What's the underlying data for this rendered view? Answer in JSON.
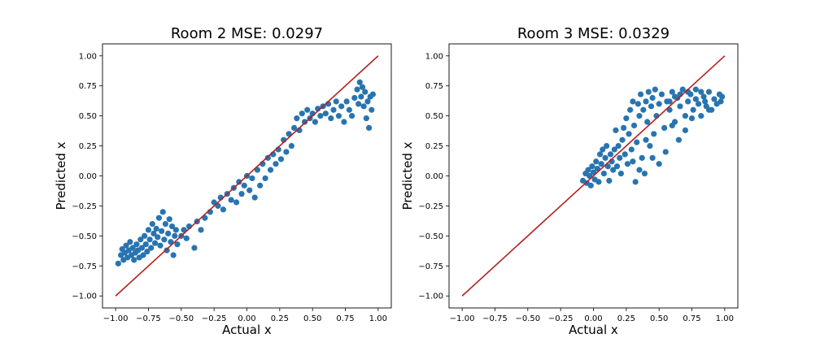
{
  "chart_data": [
    {
      "type": "scatter",
      "title": "Room 2 MSE: 0.0297",
      "xlabel": "Actual x",
      "ylabel": "Predicted x",
      "xlim": [
        -1.1,
        1.1
      ],
      "ylim": [
        -1.1,
        1.1
      ],
      "xticks": [
        -1.0,
        -0.75,
        -0.5,
        -0.25,
        0.0,
        0.25,
        0.5,
        0.75,
        1.0
      ],
      "yticks": [
        -1.0,
        -0.75,
        -0.5,
        -0.25,
        0.0,
        0.25,
        0.5,
        0.75,
        1.0
      ],
      "xtick_labels": [
        "−1.00",
        "−0.75",
        "−0.50",
        "−0.25",
        "0.00",
        "0.25",
        "0.50",
        "0.75",
        "1.00"
      ],
      "ytick_labels": [
        "−1.00",
        "−0.75",
        "−0.50",
        "−0.25",
        "0.00",
        "0.25",
        "0.50",
        "0.75",
        "1.00"
      ],
      "grid": false,
      "reference_line": {
        "x": [
          -1.0,
          1.0
        ],
        "y": [
          -1.0,
          1.0
        ],
        "color": "#b22222"
      },
      "marker_color": "#2874b0",
      "points": [
        [
          -0.98,
          -0.73
        ],
        [
          -0.96,
          -0.66
        ],
        [
          -0.95,
          -0.61
        ],
        [
          -0.94,
          -0.7
        ],
        [
          -0.93,
          -0.64
        ],
        [
          -0.92,
          -0.58
        ],
        [
          -0.91,
          -0.68
        ],
        [
          -0.9,
          -0.62
        ],
        [
          -0.89,
          -0.55
        ],
        [
          -0.88,
          -0.66
        ],
        [
          -0.87,
          -0.6
        ],
        [
          -0.86,
          -0.7
        ],
        [
          -0.85,
          -0.64
        ],
        [
          -0.84,
          -0.57
        ],
        [
          -0.83,
          -0.62
        ],
        [
          -0.82,
          -0.68
        ],
        [
          -0.81,
          -0.53
        ],
        [
          -0.8,
          -0.6
        ],
        [
          -0.79,
          -0.66
        ],
        [
          -0.78,
          -0.5
        ],
        [
          -0.77,
          -0.57
        ],
        [
          -0.76,
          -0.63
        ],
        [
          -0.75,
          -0.45
        ],
        [
          -0.74,
          -0.53
        ],
        [
          -0.73,
          -0.6
        ],
        [
          -0.72,
          -0.4
        ],
        [
          -0.71,
          -0.48
        ],
        [
          -0.7,
          -0.56
        ],
        [
          -0.69,
          -0.44
        ],
        [
          -0.68,
          -0.51
        ],
        [
          -0.67,
          -0.35
        ],
        [
          -0.66,
          -0.58
        ],
        [
          -0.65,
          -0.46
        ],
        [
          -0.64,
          -0.3
        ],
        [
          -0.63,
          -0.53
        ],
        [
          -0.62,
          -0.4
        ],
        [
          -0.61,
          -0.62
        ],
        [
          -0.6,
          -0.48
        ],
        [
          -0.59,
          -0.36
        ],
        [
          -0.58,
          -0.55
        ],
        [
          -0.57,
          -0.42
        ],
        [
          -0.56,
          -0.66
        ],
        [
          -0.55,
          -0.5
        ],
        [
          -0.54,
          -0.45
        ],
        [
          -0.53,
          -0.57
        ],
        [
          -0.5,
          -0.5
        ],
        [
          -0.48,
          -0.45
        ],
        [
          -0.46,
          -0.52
        ],
        [
          -0.44,
          -0.42
        ],
        [
          -0.4,
          -0.6
        ],
        [
          -0.38,
          -0.38
        ],
        [
          -0.35,
          -0.45
        ],
        [
          -0.32,
          -0.35
        ],
        [
          -0.28,
          -0.3
        ],
        [
          -0.25,
          -0.22
        ],
        [
          -0.22,
          -0.25
        ],
        [
          -0.2,
          -0.18
        ],
        [
          -0.18,
          -0.28
        ],
        [
          -0.15,
          -0.15
        ],
        [
          -0.12,
          -0.2
        ],
        [
          -0.1,
          -0.1
        ],
        [
          -0.08,
          -0.22
        ],
        [
          -0.06,
          -0.05
        ],
        [
          -0.04,
          -0.15
        ],
        [
          -0.02,
          -0.08
        ],
        [
          0.0,
          0.0
        ],
        [
          0.02,
          -0.12
        ],
        [
          0.04,
          -0.02
        ],
        [
          0.06,
          -0.18
        ],
        [
          0.08,
          0.05
        ],
        [
          0.1,
          -0.08
        ],
        [
          0.12,
          0.1
        ],
        [
          0.14,
          -0.02
        ],
        [
          0.16,
          0.15
        ],
        [
          0.18,
          0.05
        ],
        [
          0.2,
          0.18
        ],
        [
          0.22,
          0.1
        ],
        [
          0.24,
          0.22
        ],
        [
          0.26,
          0.14
        ],
        [
          0.28,
          0.3
        ],
        [
          0.3,
          0.2
        ],
        [
          0.32,
          0.35
        ],
        [
          0.34,
          0.25
        ],
        [
          0.36,
          0.4
        ],
        [
          0.38,
          0.48
        ],
        [
          0.4,
          0.38
        ],
        [
          0.42,
          0.52
        ],
        [
          0.44,
          0.45
        ],
        [
          0.46,
          0.55
        ],
        [
          0.48,
          0.48
        ],
        [
          0.5,
          0.52
        ],
        [
          0.52,
          0.45
        ],
        [
          0.54,
          0.56
        ],
        [
          0.56,
          0.5
        ],
        [
          0.58,
          0.58
        ],
        [
          0.6,
          0.52
        ],
        [
          0.62,
          0.6
        ],
        [
          0.64,
          0.48
        ],
        [
          0.66,
          0.55
        ],
        [
          0.68,
          0.62
        ],
        [
          0.7,
          0.5
        ],
        [
          0.72,
          0.58
        ],
        [
          0.74,
          0.45
        ],
        [
          0.76,
          0.62
        ],
        [
          0.78,
          0.55
        ],
        [
          0.8,
          0.5
        ],
        [
          0.82,
          0.65
        ],
        [
          0.84,
          0.72
        ],
        [
          0.85,
          0.6
        ],
        [
          0.86,
          0.78
        ],
        [
          0.87,
          0.66
        ],
        [
          0.88,
          0.74
        ],
        [
          0.89,
          0.58
        ],
        [
          0.9,
          0.7
        ],
        [
          0.91,
          0.48
        ],
        [
          0.92,
          0.62
        ],
        [
          0.93,
          0.4
        ],
        [
          0.94,
          0.66
        ],
        [
          0.95,
          0.55
        ],
        [
          0.96,
          0.68
        ]
      ]
    },
    {
      "type": "scatter",
      "title": "Room 3 MSE: 0.0329",
      "xlabel": "Actual x",
      "ylabel": "Predicted x",
      "xlim": [
        -1.1,
        1.1
      ],
      "ylim": [
        -1.1,
        1.1
      ],
      "xticks": [
        -1.0,
        -0.75,
        -0.5,
        -0.25,
        0.0,
        0.25,
        0.5,
        0.75,
        1.0
      ],
      "yticks": [
        -1.0,
        -0.75,
        -0.5,
        -0.25,
        0.0,
        0.25,
        0.5,
        0.75,
        1.0
      ],
      "xtick_labels": [
        "−1.00",
        "−0.75",
        "−0.50",
        "−0.25",
        "0.00",
        "0.25",
        "0.50",
        "0.75",
        "1.00"
      ],
      "ytick_labels": [
        "−1.00",
        "−0.75",
        "−0.50",
        "−0.25",
        "0.00",
        "0.25",
        "0.50",
        "0.75",
        "1.00"
      ],
      "grid": false,
      "reference_line": {
        "x": [
          -1.0,
          1.0
        ],
        "y": [
          -1.0,
          1.0
        ],
        "color": "#b22222"
      },
      "marker_color": "#2874b0",
      "points": [
        [
          -0.08,
          -0.04
        ],
        [
          -0.06,
          0.02
        ],
        [
          -0.05,
          -0.06
        ],
        [
          -0.04,
          0.05
        ],
        [
          -0.03,
          0.0
        ],
        [
          -0.02,
          -0.08
        ],
        [
          -0.01,
          0.08
        ],
        [
          0.0,
          0.03
        ],
        [
          0.01,
          -0.03
        ],
        [
          0.02,
          0.12
        ],
        [
          0.03,
          0.06
        ],
        [
          0.04,
          -0.05
        ],
        [
          0.05,
          0.18
        ],
        [
          0.06,
          0.1
        ],
        [
          0.07,
          0.22
        ],
        [
          0.08,
          0.02
        ],
        [
          0.09,
          0.15
        ],
        [
          0.1,
          0.25
        ],
        [
          0.11,
          0.08
        ],
        [
          0.12,
          -0.04
        ],
        [
          0.13,
          0.18
        ],
        [
          0.14,
          0.12
        ],
        [
          0.15,
          0.05
        ],
        [
          0.16,
          0.22
        ],
        [
          0.17,
          0.38
        ],
        [
          0.18,
          0.08
        ],
        [
          0.19,
          0.25
        ],
        [
          0.2,
          0.15
        ],
        [
          0.21,
          0.02
        ],
        [
          0.22,
          0.3
        ],
        [
          0.23,
          0.4
        ],
        [
          0.24,
          0.18
        ],
        [
          0.25,
          0.48
        ],
        [
          0.26,
          0.1
        ],
        [
          0.27,
          0.35
        ],
        [
          0.28,
          0.55
        ],
        [
          0.29,
          0.22
        ],
        [
          0.3,
          0.62
        ],
        [
          0.31,
          0.42
        ],
        [
          0.32,
          -0.05
        ],
        [
          0.33,
          0.28
        ],
        [
          0.34,
          0.6
        ],
        [
          0.35,
          0.5
        ],
        [
          0.36,
          0.68
        ],
        [
          0.37,
          0.15
        ],
        [
          0.38,
          0.55
        ],
        [
          0.39,
          0.02
        ],
        [
          0.4,
          0.62
        ],
        [
          0.41,
          0.45
        ],
        [
          0.42,
          0.7
        ],
        [
          0.43,
          0.25
        ],
        [
          0.44,
          0.58
        ],
        [
          0.45,
          0.65
        ],
        [
          0.46,
          0.35
        ],
        [
          0.47,
          0.72
        ],
        [
          0.48,
          0.5
        ],
        [
          0.5,
          0.6
        ],
        [
          0.52,
          0.68
        ],
        [
          0.54,
          0.4
        ],
        [
          0.56,
          0.62
        ],
        [
          0.58,
          0.55
        ],
        [
          0.6,
          0.7
        ],
        [
          0.62,
          0.45
        ],
        [
          0.64,
          0.65
        ],
        [
          0.66,
          0.58
        ],
        [
          0.68,
          0.72
        ],
        [
          0.7,
          0.5
        ],
        [
          0.72,
          0.62
        ],
        [
          0.74,
          0.68
        ],
        [
          0.76,
          0.55
        ],
        [
          0.78,
          0.72
        ],
        [
          0.8,
          0.6
        ],
        [
          0.82,
          0.5
        ],
        [
          0.84,
          0.66
        ],
        [
          0.86,
          0.58
        ],
        [
          0.88,
          0.7
        ],
        [
          0.9,
          0.55
        ],
        [
          0.92,
          0.64
        ],
        [
          0.94,
          0.6
        ],
        [
          0.96,
          0.68
        ],
        [
          0.97,
          0.62
        ],
        [
          0.98,
          0.66
        ],
        [
          0.6,
          0.42
        ],
        [
          0.65,
          0.3
        ],
        [
          0.55,
          0.2
        ],
        [
          0.7,
          0.38
        ],
        [
          0.45,
          0.15
        ],
        [
          0.5,
          0.1
        ],
        [
          0.75,
          0.48
        ],
        [
          0.4,
          0.3
        ],
        [
          0.35,
          0.05
        ],
        [
          0.3,
          0.12
        ],
        [
          0.85,
          0.62
        ],
        [
          0.88,
          0.55
        ],
        [
          0.62,
          0.66
        ],
        [
          0.58,
          0.62
        ],
        [
          0.66,
          0.68
        ],
        [
          0.72,
          0.7
        ],
        [
          0.78,
          0.64
        ],
        [
          0.82,
          0.7
        ]
      ]
    }
  ]
}
